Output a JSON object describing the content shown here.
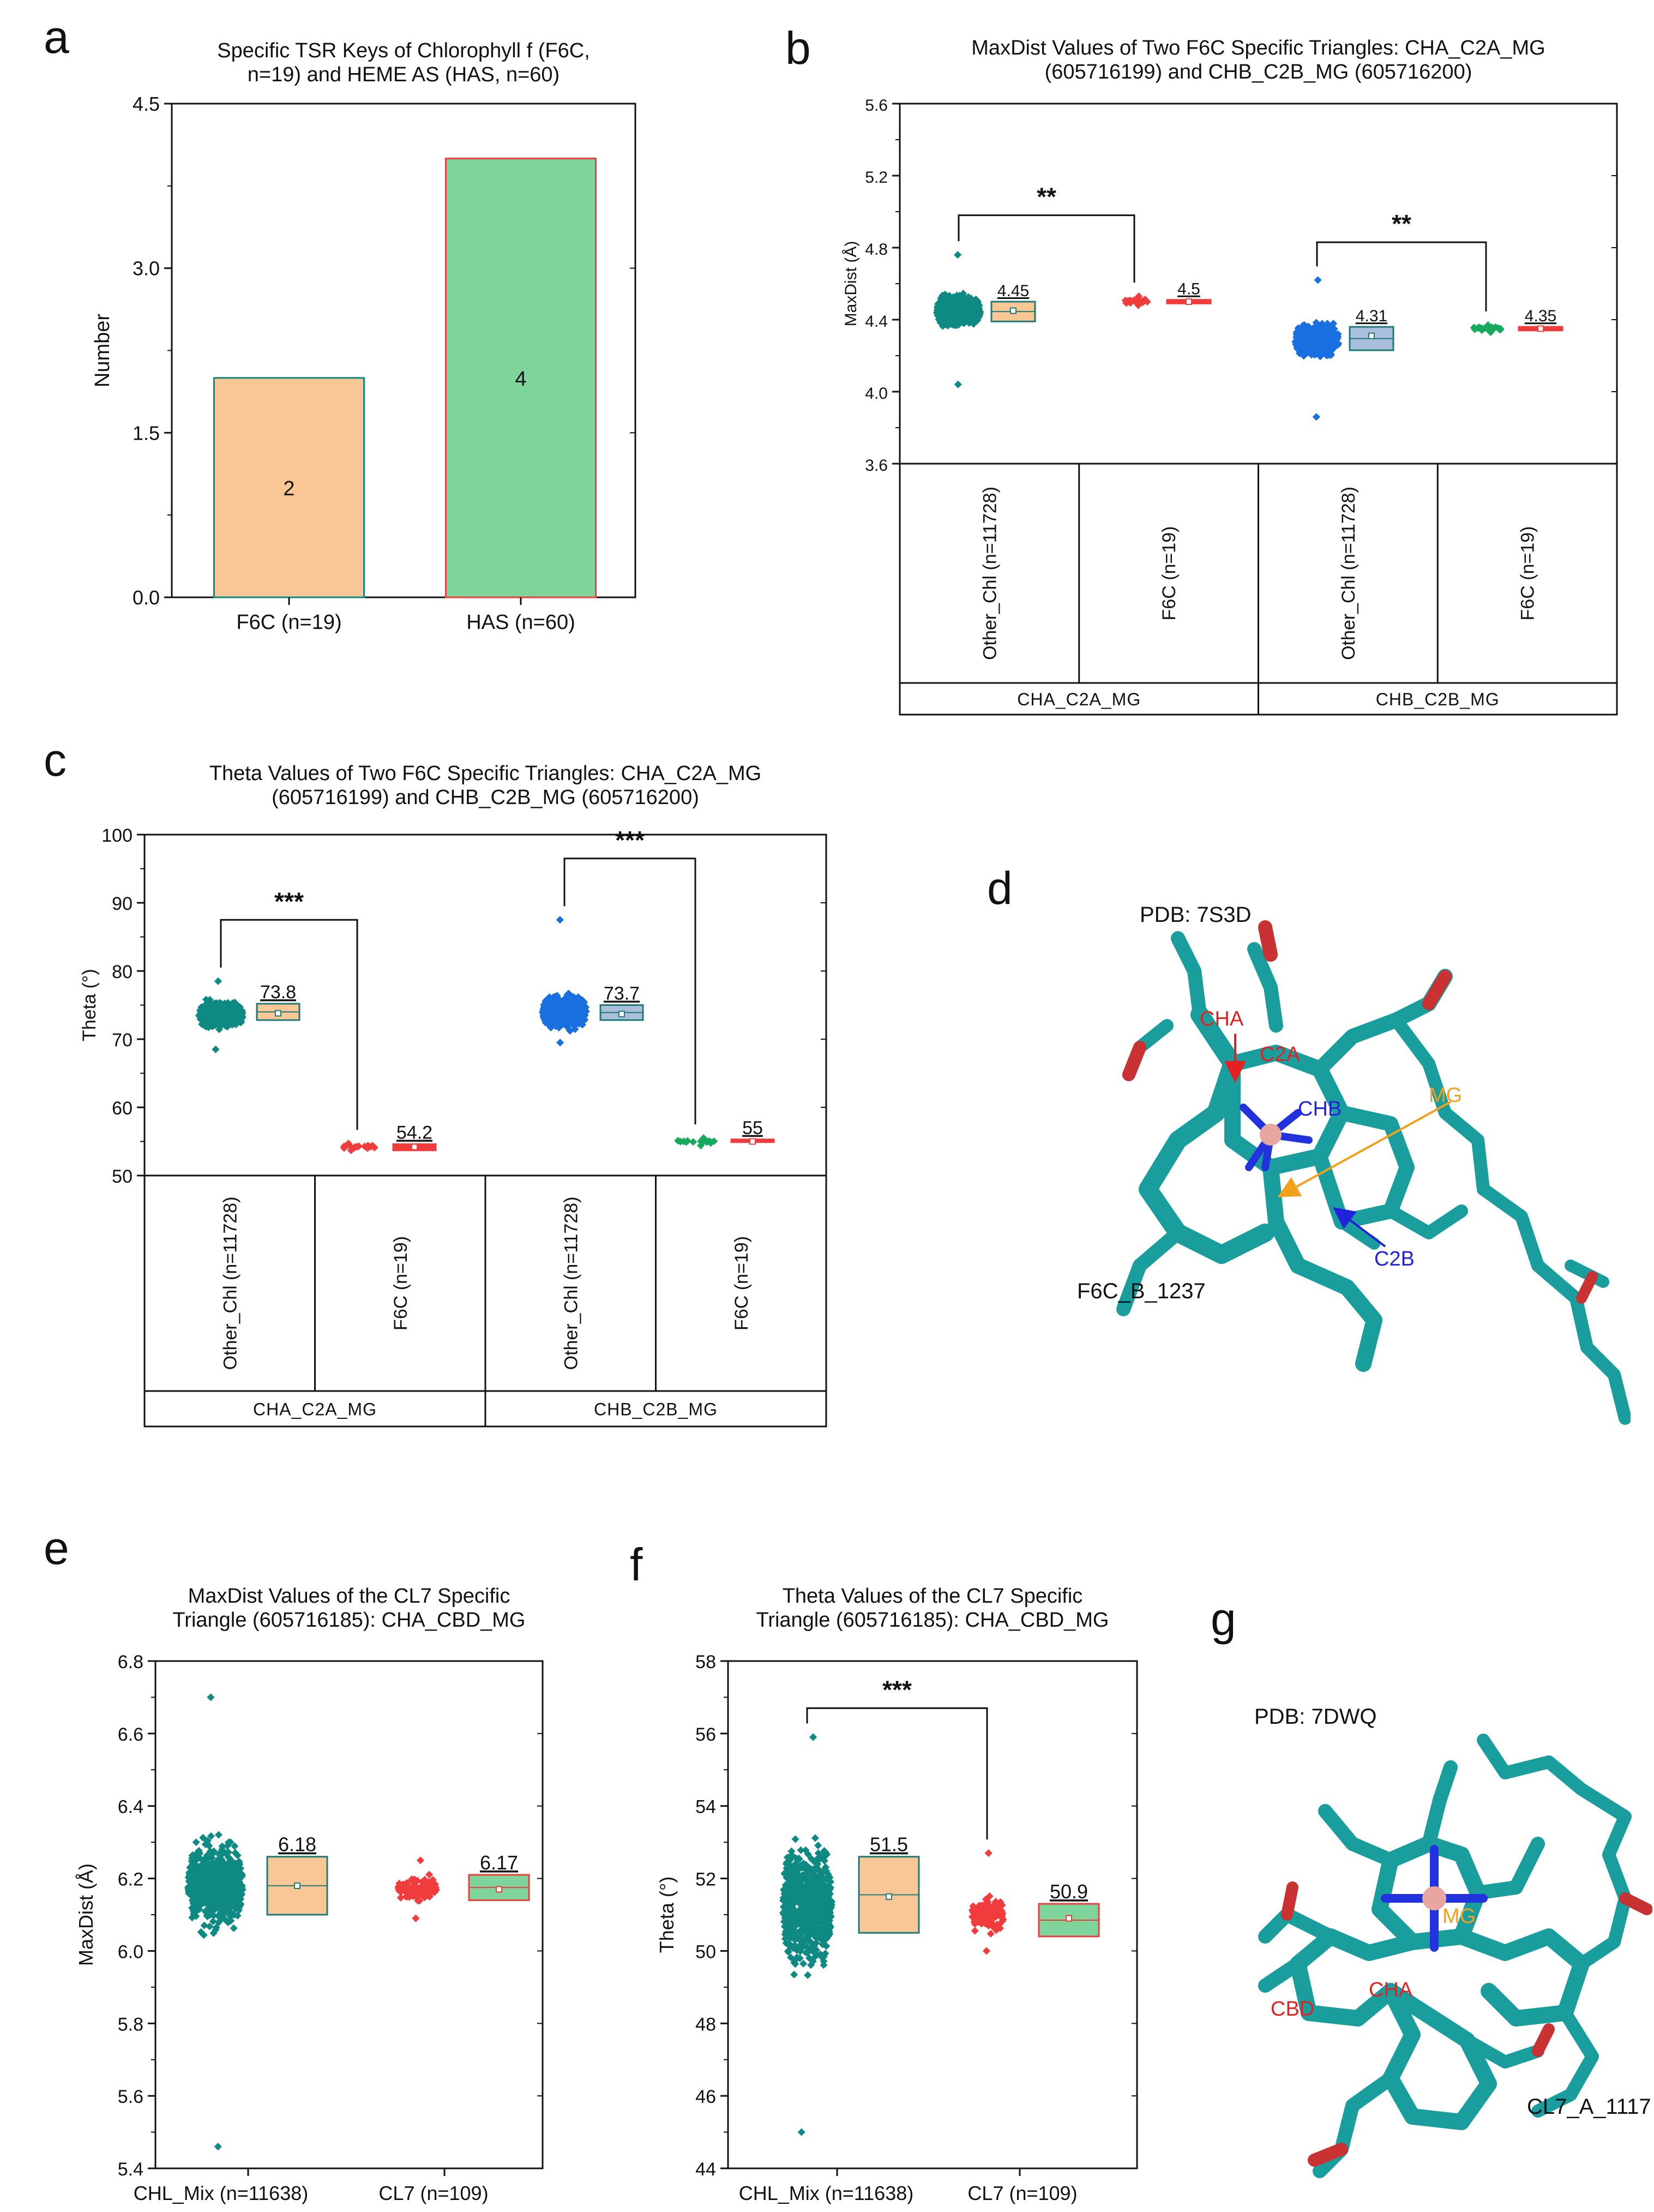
{
  "panel_labels": {
    "a": "a",
    "b": "b",
    "c": "c",
    "d": "d",
    "e": "e",
    "f": "f",
    "g": "g"
  },
  "colors": {
    "orange": "#f9c795",
    "green": "#7fd49c",
    "teal": "#0e8a83",
    "blue": "#1a6fe0",
    "red": "#f03c3c",
    "darkgreen": "#17a95c",
    "blue_box": "#a9bfdc",
    "teal_stroke": "#1f7a78"
  },
  "chart_data": [
    {
      "id": "a",
      "type": "bar",
      "title_lines": [
        "Specific TSR Keys of Chlorophyll f (F6C,",
        "n=19) and HEME AS (HAS, n=60)"
      ],
      "categories": [
        "F6C (n=19)",
        "HAS (n=60)"
      ],
      "values": [
        2,
        4
      ],
      "value_labels": [
        "2",
        "4"
      ],
      "ylabel": "Number",
      "ylim": [
        0,
        4.5
      ],
      "yticks": [
        "0.0",
        "1.5",
        "3.0",
        "4.5"
      ],
      "ytick_values": [
        0,
        1.5,
        3.0,
        4.5
      ]
    },
    {
      "id": "b",
      "type": "scatter",
      "title_lines": [
        "MaxDist Values of Two F6C Specific Triangles: CHA_C2A_MG",
        "(605716199) and CHB_C2B_MG (605716200)"
      ],
      "ylabel": "MaxDist (Å)",
      "ylim": [
        3.6,
        5.6
      ],
      "yticks": [
        "3.6",
        "4.0",
        "4.4",
        "4.8",
        "5.2",
        "5.6"
      ],
      "ytick_values": [
        3.6,
        4.0,
        4.4,
        4.8,
        5.2,
        5.6
      ],
      "groups": [
        "CHA_C2A_MG",
        "CHB_C2B_MG"
      ],
      "series_labels": [
        "Other_Chl (n=11728)",
        "F6C (n=19)",
        "Other_Chl (n=11728)",
        "F6C (n=19)"
      ],
      "series": [
        {
          "name": "Other_Chl (n=11728)",
          "center": 4.45,
          "spread": 0.09,
          "min": 4.04,
          "max": 4.76,
          "mean_label": "4.45",
          "box": [
            4.39,
            4.5
          ],
          "mean": 4.45
        },
        {
          "name": "F6C (n=19)",
          "center": 4.5,
          "spread": 0.015,
          "min": 4.48,
          "max": 4.53,
          "mean_label": "4.5",
          "box": [
            4.49,
            4.51
          ],
          "mean": 4.5
        },
        {
          "name": "Other_Chl (n=11728)",
          "center": 4.29,
          "spread": 0.09,
          "min": 3.86,
          "max": 4.62,
          "mean_label": "4.31",
          "box": [
            4.23,
            4.36
          ],
          "mean": 4.31
        },
        {
          "name": "F6C (n=19)",
          "center": 4.35,
          "spread": 0.01,
          "min": 4.33,
          "max": 4.37,
          "mean_label": "4.35",
          "box": [
            4.34,
            4.36
          ],
          "mean": 4.35
        }
      ],
      "sig": [
        {
          "from": 0,
          "to": 1,
          "label": "**",
          "y": 4.98
        },
        {
          "from": 2,
          "to": 3,
          "label": "**",
          "y": 4.83
        }
      ]
    },
    {
      "id": "c",
      "type": "scatter",
      "title_lines": [
        "Theta Values of Two F6C Specific Triangles: CHA_C2A_MG",
        "(605716199) and CHB_C2B_MG (605716200)"
      ],
      "ylabel": "Theta (°)",
      "ylim": [
        50,
        100
      ],
      "yticks": [
        "50",
        "60",
        "70",
        "80",
        "90",
        "100"
      ],
      "ytick_values": [
        50,
        60,
        70,
        80,
        90,
        100
      ],
      "groups": [
        "CHA_C2A_MG",
        "CHB_C2B_MG"
      ],
      "series_labels": [
        "Other_Chl (n=11728)",
        "F6C (n=19)",
        "Other_Chl (n=11728)",
        "F6C (n=19)"
      ],
      "series": [
        {
          "name": "Other_Chl (n=11728)",
          "center": 73.5,
          "spread": 2.0,
          "min": 68.5,
          "max": 78.5,
          "mean_label": "73.8",
          "box": [
            72.8,
            75.2
          ],
          "mean": 73.8
        },
        {
          "name": "F6C (n=19)",
          "center": 54.2,
          "spread": 0.3,
          "min": 53.7,
          "max": 54.7,
          "mean_label": "54.2",
          "box": [
            53.7,
            54.6
          ],
          "mean": 54.2
        },
        {
          "name": "Other_Chl (n=11728)",
          "center": 74.0,
          "spread": 2.4,
          "min": 69.5,
          "max": 87.5,
          "mean_label": "73.7",
          "box": [
            72.8,
            75.0
          ],
          "mean": 73.7
        },
        {
          "name": "F6C (n=19)",
          "center": 55.0,
          "spread": 0.3,
          "min": 54.4,
          "max": 55.5,
          "mean_label": "55",
          "box": [
            54.9,
            55.3
          ],
          "mean": 55.0
        }
      ],
      "sig": [
        {
          "from": 0,
          "to": 1,
          "label": "***",
          "y": 87.5
        },
        {
          "from": 2,
          "to": 3,
          "label": "***",
          "y": 96.5
        }
      ]
    },
    {
      "id": "e",
      "type": "scatter",
      "title_lines": [
        "MaxDist Values of the CL7 Specific",
        "Triangle (605716185): CHA_CBD_MG"
      ],
      "ylabel": "MaxDist (Å)",
      "ylim": [
        5.4,
        6.8
      ],
      "yticks": [
        "5.4",
        "5.6",
        "5.8",
        "6.0",
        "6.2",
        "6.4",
        "6.6",
        "6.8"
      ],
      "ytick_values": [
        5.4,
        5.6,
        5.8,
        6.0,
        6.2,
        6.4,
        6.6,
        6.8
      ],
      "categories": [
        "CHL_Mix (n=11638)",
        "CL7 (n=109)"
      ],
      "series": [
        {
          "name": "CHL_Mix (n=11638)",
          "center": 6.18,
          "spread": 0.12,
          "min": 5.46,
          "max": 6.7,
          "mean_label": "6.18",
          "box": [
            6.1,
            6.26
          ],
          "mean": 6.18
        },
        {
          "name": "CL7 (n=109)",
          "center": 6.17,
          "spread": 0.035,
          "min": 6.09,
          "max": 6.25,
          "mean_label": "6.17",
          "box": [
            6.14,
            6.21
          ],
          "mean": 6.17
        }
      ]
    },
    {
      "id": "f",
      "type": "scatter",
      "title_lines": [
        "Theta Values of the CL7 Specific",
        "Triangle (605716185): CHA_CBD_MG"
      ],
      "ylabel": "Theta (°)",
      "ylim": [
        44,
        58
      ],
      "yticks": [
        "44",
        "46",
        "48",
        "50",
        "52",
        "54",
        "56",
        "58"
      ],
      "ytick_values": [
        44,
        46,
        48,
        50,
        52,
        54,
        56,
        58
      ],
      "categories": [
        "CHL_Mix (n=11638)",
        "CL7 (n=109)"
      ],
      "series": [
        {
          "name": "CHL_Mix (n=11638)",
          "center": 51.3,
          "spread": 1.6,
          "min": 45.0,
          "max": 55.9,
          "mean_label": "51.5",
          "box": [
            50.5,
            52.6
          ],
          "mean": 51.5
        },
        {
          "name": "CL7 (n=109)",
          "center": 51.0,
          "spread": 0.5,
          "min": 50.0,
          "max": 52.7,
          "mean_label": "50.9",
          "box": [
            50.4,
            51.3
          ],
          "mean": 50.9
        }
      ],
      "sig": [
        {
          "from": 0,
          "to": 1,
          "label": "***",
          "y": 56.7
        }
      ]
    }
  ],
  "molecule_d": {
    "pdb": "PDB: 7S3D",
    "ligand": "F6C_B_1237",
    "atoms": {
      "cha": "CHA",
      "c2a": "C2A",
      "chb": "CHB",
      "mg": "MG",
      "c2b": "C2B"
    }
  },
  "molecule_g": {
    "pdb": "PDB: 7DWQ",
    "ligand": "CL7_A_1117",
    "atoms": {
      "mg": "MG",
      "cbd": "CBD",
      "cha": "CHA"
    }
  }
}
